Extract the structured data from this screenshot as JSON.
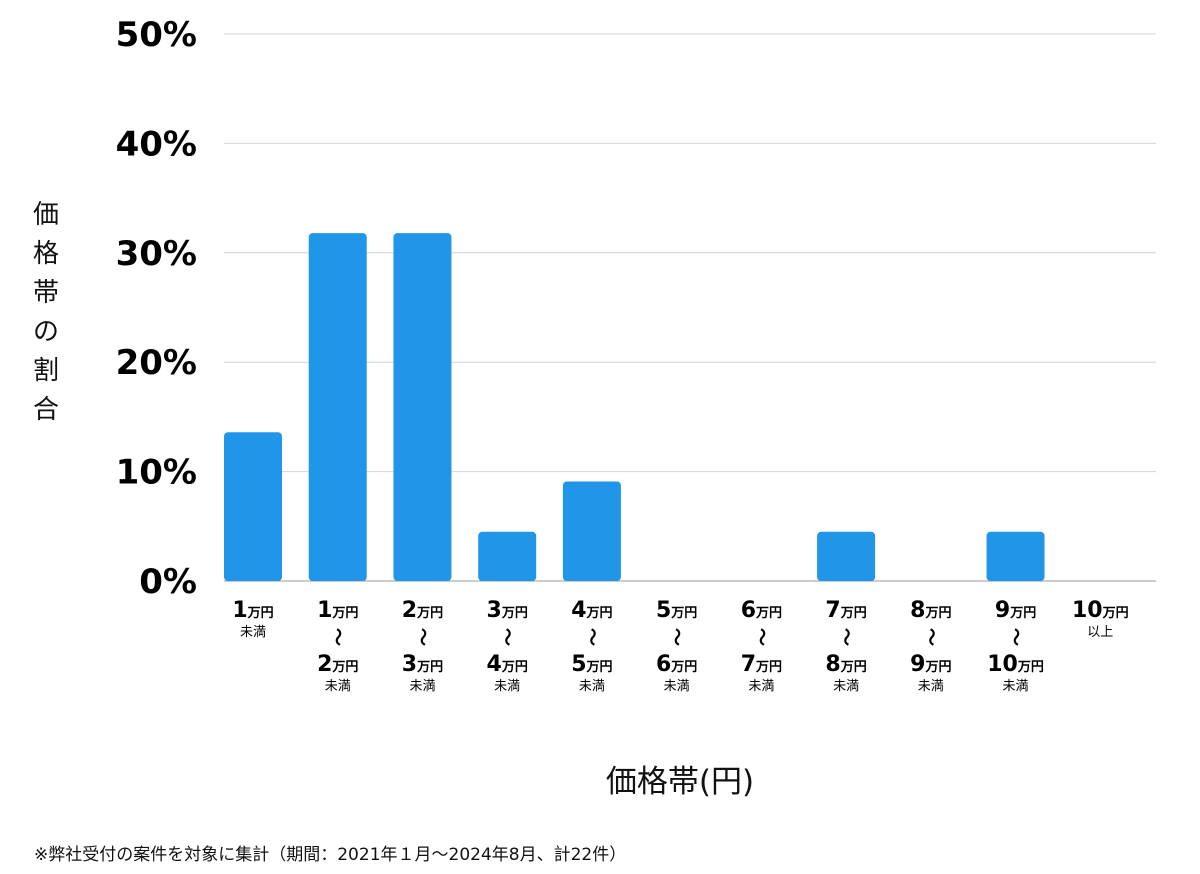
{
  "chart_data": {
    "type": "bar",
    "categories": [
      {
        "from": "1",
        "from_unit": "万円",
        "to": "",
        "to_unit": "",
        "suffix": "未満"
      },
      {
        "from": "1",
        "from_unit": "万円",
        "to": "2",
        "to_unit": "万円",
        "suffix": "未満"
      },
      {
        "from": "2",
        "from_unit": "万円",
        "to": "3",
        "to_unit": "万円",
        "suffix": "未満"
      },
      {
        "from": "3",
        "from_unit": "万円",
        "to": "4",
        "to_unit": "万円",
        "suffix": "未満"
      },
      {
        "from": "4",
        "from_unit": "万円",
        "to": "5",
        "to_unit": "万円",
        "suffix": "未満"
      },
      {
        "from": "5",
        "from_unit": "万円",
        "to": "6",
        "to_unit": "万円",
        "suffix": "未満"
      },
      {
        "from": "6",
        "from_unit": "万円",
        "to": "7",
        "to_unit": "万円",
        "suffix": "未満"
      },
      {
        "from": "7",
        "from_unit": "万円",
        "to": "8",
        "to_unit": "万円",
        "suffix": "未満"
      },
      {
        "from": "8",
        "from_unit": "万円",
        "to": "9",
        "to_unit": "万円",
        "suffix": "未満"
      },
      {
        "from": "9",
        "from_unit": "万円",
        "to": "10",
        "to_unit": "万円",
        "suffix": "未満"
      },
      {
        "from": "10",
        "from_unit": "万円",
        "to": "",
        "to_unit": "",
        "suffix": "以上"
      }
    ],
    "range_symbol": "〜",
    "values": [
      13.6,
      31.8,
      31.8,
      4.5,
      9.1,
      0,
      0,
      4.5,
      0,
      4.5,
      0
    ],
    "ylim": [
      0,
      50
    ],
    "yticks": [
      "0%",
      "10%",
      "20%",
      "30%",
      "40%",
      "50%"
    ],
    "ytick_values": [
      0,
      10,
      20,
      30,
      40,
      50
    ],
    "ylabel": "価格帯の割合",
    "xlabel": "価格帯(円)",
    "grid": true,
    "bar_color": "#2196e8",
    "grid_color": "#d4d4d4"
  },
  "footnote": "※弊社受付の案件を対象に集計（期間：2021年１月〜2024年8月、計22件）"
}
